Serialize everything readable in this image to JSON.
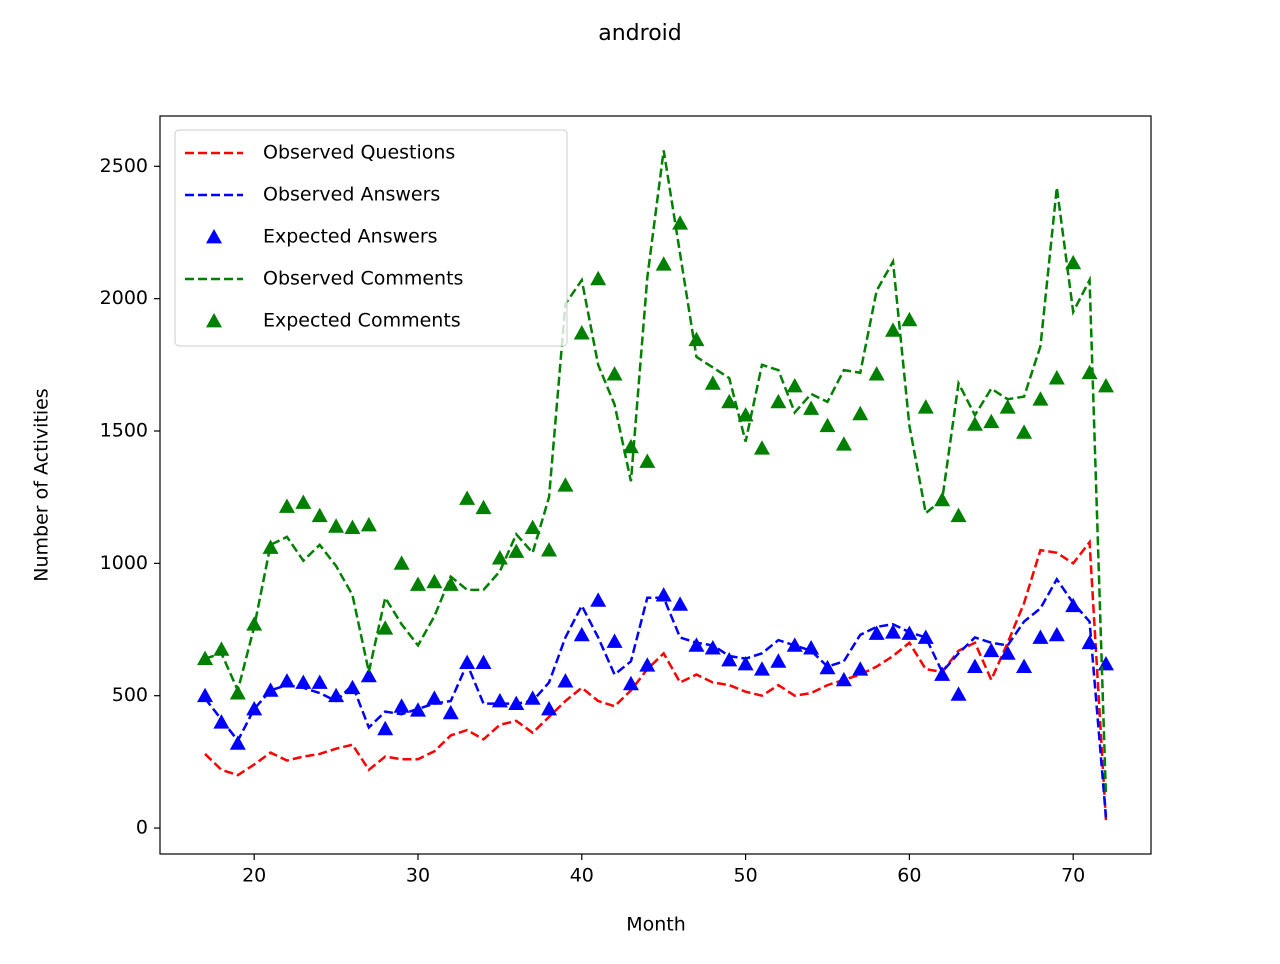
{
  "chart_data": {
    "type": "line",
    "title": "android",
    "x_label": "Month",
    "y_label": "Number of Activities",
    "x": [
      17,
      18,
      19,
      20,
      21,
      22,
      23,
      24,
      25,
      26,
      27,
      28,
      29,
      30,
      31,
      32,
      33,
      34,
      35,
      36,
      37,
      38,
      39,
      40,
      41,
      42,
      43,
      44,
      45,
      46,
      47,
      48,
      49,
      50,
      51,
      52,
      53,
      54,
      55,
      56,
      57,
      58,
      59,
      60,
      61,
      62,
      63,
      64,
      65,
      66,
      67,
      68,
      69,
      70,
      71,
      72
    ],
    "xlim": [
      14.25,
      74.75
    ],
    "xticks": [
      20,
      30,
      40,
      50,
      60,
      70
    ],
    "ylim": [
      -98,
      2690
    ],
    "yticks": [
      0,
      500,
      1000,
      1500,
      2000,
      2500
    ],
    "legend": "upper left",
    "series": [
      {
        "name": "Observed Questions",
        "color": "#ff0000",
        "style": "dashed",
        "values": [
          280,
          220,
          200,
          240,
          285,
          255,
          270,
          280,
          300,
          315,
          220,
          270,
          260,
          260,
          290,
          350,
          370,
          335,
          390,
          405,
          360,
          420,
          480,
          530,
          480,
          460,
          520,
          600,
          660,
          550,
          580,
          550,
          540,
          515,
          500,
          540,
          500,
          510,
          540,
          560,
          580,
          610,
          650,
          700,
          600,
          590,
          670,
          700,
          560,
          700,
          850,
          1050,
          1040,
          1000,
          1080,
          30
        ]
      },
      {
        "name": "Observed Answers",
        "color": "#0000ff",
        "style": "dashed",
        "values": [
          490,
          410,
          330,
          450,
          520,
          540,
          530,
          510,
          480,
          540,
          380,
          440,
          430,
          450,
          470,
          480,
          620,
          470,
          470,
          470,
          480,
          550,
          720,
          840,
          720,
          580,
          630,
          870,
          870,
          720,
          700,
          690,
          650,
          640,
          660,
          710,
          690,
          670,
          610,
          630,
          730,
          760,
          770,
          740,
          720,
          590,
          660,
          720,
          700,
          690,
          780,
          830,
          940,
          850,
          780,
          40
        ]
      },
      {
        "name": "Expected Answers",
        "color": "#0000ff",
        "style": "marker",
        "values": [
          500,
          400,
          320,
          450,
          520,
          555,
          550,
          550,
          500,
          530,
          575,
          375,
          460,
          445,
          490,
          435,
          625,
          625,
          480,
          470,
          490,
          450,
          555,
          730,
          860,
          705,
          545,
          615,
          880,
          845,
          690,
          680,
          635,
          620,
          600,
          630,
          690,
          680,
          605,
          560,
          600,
          735,
          740,
          735,
          720,
          580,
          505,
          610,
          670,
          660,
          610,
          720,
          730,
          840,
          700,
          620
        ]
      },
      {
        "name": "Observed Comments",
        "color": "#008000",
        "style": "dashed",
        "values": [
          640,
          660,
          520,
          760,
          1070,
          1100,
          1010,
          1070,
          990,
          880,
          590,
          870,
          770,
          690,
          800,
          950,
          900,
          900,
          970,
          1110,
          1040,
          1250,
          1980,
          2070,
          1750,
          1600,
          1310,
          2080,
          2560,
          2170,
          1780,
          1740,
          1700,
          1460,
          1750,
          1730,
          1570,
          1640,
          1610,
          1730,
          1720,
          2030,
          2140,
          1520,
          1190,
          1240,
          1680,
          1560,
          1660,
          1620,
          1630,
          1820,
          2420,
          1950,
          2070,
          120
        ]
      },
      {
        "name": "Expected Comments",
        "color": "#008000",
        "style": "marker",
        "values": [
          640,
          675,
          510,
          770,
          1060,
          1215,
          1230,
          1180,
          1140,
          1135,
          1145,
          755,
          1000,
          920,
          930,
          920,
          1245,
          1210,
          1020,
          1045,
          1135,
          1050,
          1295,
          1870,
          2075,
          1715,
          1440,
          1385,
          2130,
          2285,
          1845,
          1680,
          1610,
          1560,
          1435,
          1610,
          1670,
          1585,
          1520,
          1450,
          1565,
          1715,
          1880,
          1920,
          1590,
          1240,
          1180,
          1525,
          1535,
          1590,
          1495,
          1620,
          1700,
          2135,
          1720,
          1670
        ]
      }
    ]
  }
}
